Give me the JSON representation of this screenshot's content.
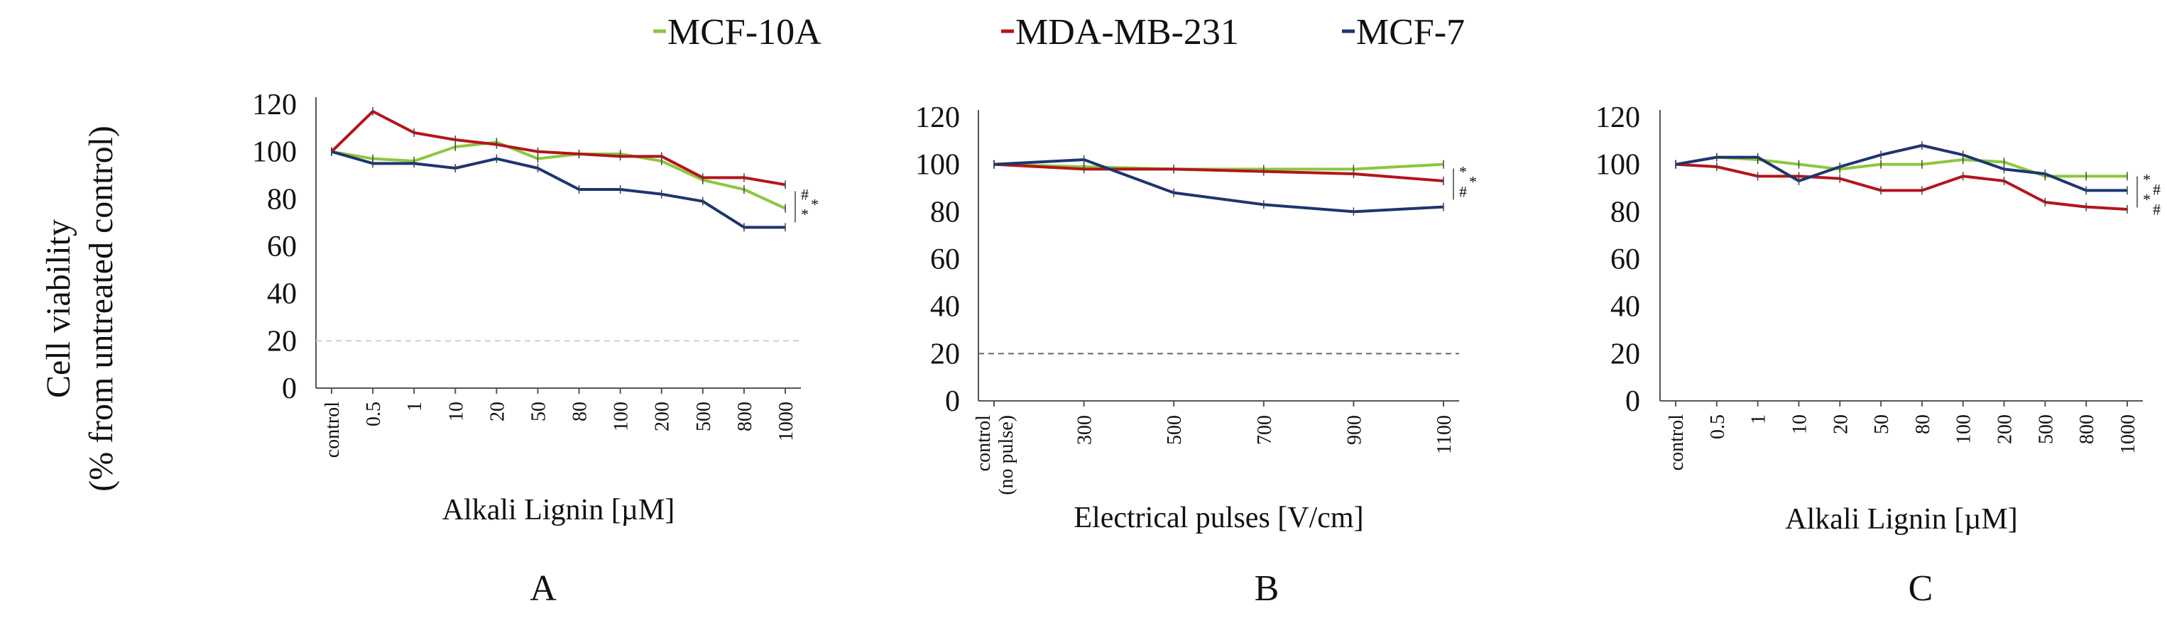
{
  "figure": {
    "y_label_line1": "Cell viability",
    "y_label_line2": "(% from untreated control)",
    "legend": [
      {
        "label": "MCF-10A",
        "color": "#8cc63f"
      },
      {
        "label": "MDA-MB-231",
        "color": "#b3151a"
      },
      {
        "label": "MCF-7",
        "color": "#1d3570"
      }
    ]
  },
  "chart_data": [
    {
      "type": "line",
      "panel": "A",
      "xlabel": "Alkali Lignin [µM]",
      "ylabel": "Cell viability (% from untreated control)",
      "ylim": [
        0,
        120
      ],
      "yticks": [
        0,
        20,
        40,
        60,
        80,
        100,
        120
      ],
      "categories": [
        "control",
        "0.5",
        "1",
        "10",
        "20",
        "50",
        "80",
        "100",
        "200",
        "500",
        "800",
        "1000"
      ],
      "threshold": 20,
      "series": [
        {
          "name": "MCF-10A",
          "values": [
            100,
            97,
            96,
            102,
            104,
            97,
            99,
            99,
            96,
            88,
            84,
            76
          ]
        },
        {
          "name": "MDA-MB-231",
          "values": [
            100,
            117,
            108,
            105,
            103,
            100,
            99,
            98,
            98,
            89,
            89,
            86
          ]
        },
        {
          "name": "MCF-7",
          "values": [
            100,
            95,
            95,
            93,
            97,
            93,
            84,
            84,
            82,
            79,
            68,
            68
          ]
        }
      ],
      "significance": [
        "#",
        "*",
        "*"
      ]
    },
    {
      "type": "line",
      "panel": "B",
      "xlabel": "Electrical pulses [V/cm]",
      "ylabel": "Cell viability (% from untreated control)",
      "ylim": [
        0,
        120
      ],
      "yticks": [
        0,
        20,
        40,
        60,
        80,
        100,
        120
      ],
      "categories": [
        "control (no pulse)",
        "300",
        "500",
        "700",
        "900",
        "1100"
      ],
      "threshold": 20,
      "series": [
        {
          "name": "MCF-10A",
          "values": [
            100,
            99,
            98,
            98,
            98,
            100
          ]
        },
        {
          "name": "MDA-MB-231",
          "values": [
            100,
            98,
            98,
            97,
            96,
            93
          ]
        },
        {
          "name": "MCF-7",
          "values": [
            100,
            102,
            88,
            83,
            80,
            82
          ]
        }
      ],
      "significance": [
        "*",
        "*",
        "#"
      ]
    },
    {
      "type": "line",
      "panel": "C",
      "xlabel": "Alkali Lignin [µM]",
      "ylabel": "Cell viability (% from untreated control)",
      "ylim": [
        0,
        120
      ],
      "yticks": [
        0,
        20,
        40,
        60,
        80,
        100,
        120
      ],
      "categories": [
        "control",
        "0.5",
        "1",
        "10",
        "20",
        "50",
        "80",
        "100",
        "200",
        "500",
        "800",
        "1000"
      ],
      "series": [
        {
          "name": "MCF-10A",
          "values": [
            100,
            103,
            102,
            100,
            98,
            100,
            100,
            102,
            101,
            95,
            95,
            95
          ]
        },
        {
          "name": "MDA-MB-231",
          "values": [
            100,
            99,
            95,
            95,
            94,
            89,
            89,
            95,
            93,
            84,
            82,
            81
          ]
        },
        {
          "name": "MCF-7",
          "values": [
            100,
            103,
            103,
            93,
            99,
            104,
            108,
            104,
            98,
            96,
            89,
            89
          ]
        }
      ],
      "significance": [
        "*",
        "#",
        "*",
        "#"
      ]
    }
  ]
}
